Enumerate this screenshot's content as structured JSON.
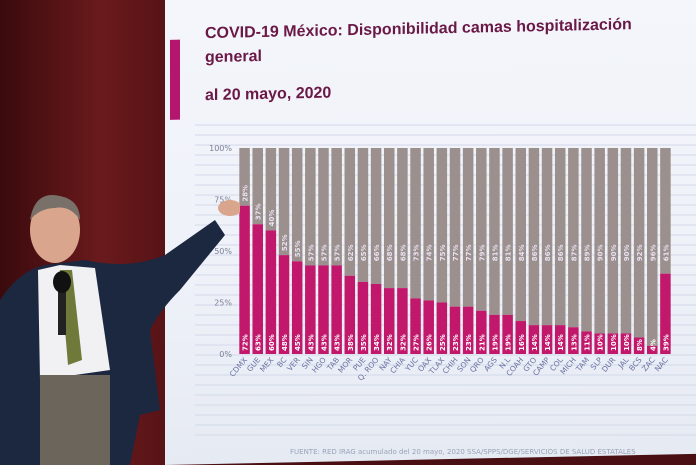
{
  "title_line1": "COVID-19 México: Disponibilidad camas hospitalización",
  "title_line2": "general",
  "title_line3": "al 20 mayo, 2020",
  "footer": "FUENTE: RED IRAG acumulado del 20 mayo, 2020    SSA/SPPS/DGE/SERVICIOS DE SALUD ESTATALES",
  "colors": {
    "occupied": "#c2186c",
    "available": "#9b908d",
    "title": "#6a1846"
  },
  "chart_data": {
    "type": "bar",
    "stacked": true,
    "title": "COVID-19 México: Disponibilidad camas hospitalización general al 20 mayo, 2020",
    "yticks": [
      "0%",
      "25%",
      "50%",
      "75%",
      "100%"
    ],
    "ylim": [
      0,
      100
    ],
    "categories": [
      "CDMX",
      "GUE",
      "MEX",
      "BC",
      "VER",
      "SIN",
      "HGO",
      "TAB",
      "MOR",
      "PUE",
      "Q. ROO",
      "NAY",
      "CHIA",
      "YUC",
      "OAX",
      "TLAX",
      "CHIH",
      "SON",
      "QRO",
      "AGS",
      "N.L",
      "COAH",
      "GTO",
      "CAMP",
      "COL",
      "MICH",
      "TAM",
      "SLP",
      "DUR",
      "JAL",
      "BCS",
      "ZAC",
      "NAC"
    ],
    "series": [
      {
        "values": [
          72,
          63,
          60,
          48,
          45,
          43,
          43,
          43,
          38,
          35,
          34,
          32,
          32,
          27,
          26,
          25,
          23,
          23,
          21,
          19,
          19,
          16,
          14,
          14,
          14,
          13,
          11,
          10,
          10,
          10,
          8,
          4,
          39
        ]
      },
      {
        "values": [
          28,
          37,
          40,
          52,
          55,
          57,
          57,
          57,
          62,
          65,
          66,
          68,
          68,
          73,
          74,
          75,
          77,
          77,
          79,
          81,
          81,
          84,
          86,
          86,
          86,
          87,
          89,
          90,
          90,
          90,
          92,
          96,
          61
        ]
      }
    ]
  }
}
